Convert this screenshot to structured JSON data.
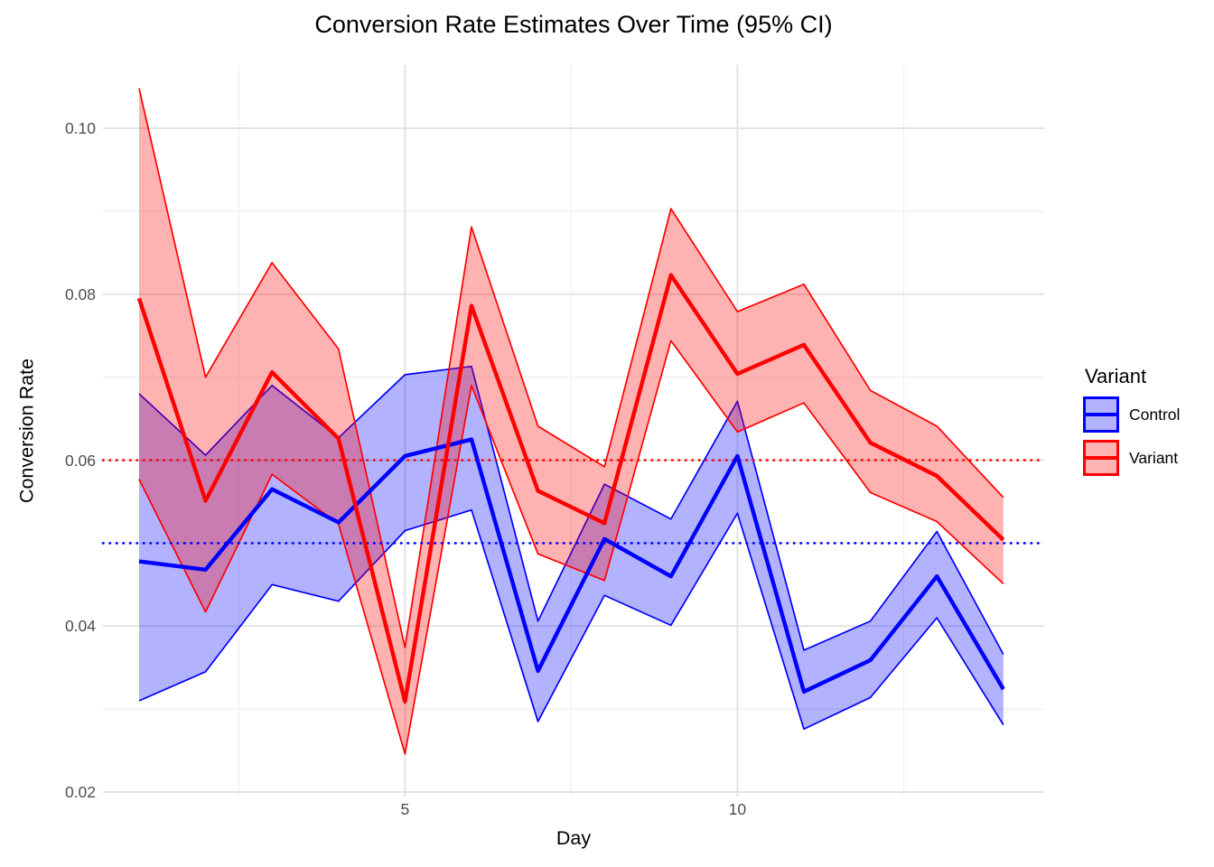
{
  "title": "Conversion Rate Estimates Over Time (95% CI)",
  "axes": {
    "x_label": "Day",
    "y_label": "Conversion Rate",
    "x_ticks": [
      {
        "value": 5,
        "label": "5"
      },
      {
        "value": 10,
        "label": "10"
      }
    ],
    "y_ticks": [
      {
        "value": 0.02,
        "label": "0.02"
      },
      {
        "value": 0.04,
        "label": "0.04"
      },
      {
        "value": 0.06,
        "label": "0.06"
      },
      {
        "value": 0.08,
        "label": "0.08"
      },
      {
        "value": 0.1,
        "label": "0.10"
      }
    ]
  },
  "legend": {
    "title": "Variant",
    "position": "right",
    "items": [
      {
        "label": "Control",
        "color": "#0000ff",
        "fill": "#b3b3ff"
      },
      {
        "label": "Variant",
        "color": "#ff0000",
        "fill": "#ffb3b3"
      }
    ]
  },
  "chart_data": {
    "type": "line",
    "title": "Conversion Rate Estimates Over Time (95% CI)",
    "xlabel": "Day",
    "ylabel": "Conversion Rate",
    "x": [
      1,
      2,
      3,
      4,
      5,
      6,
      7,
      8,
      9,
      10,
      11,
      12,
      13,
      14
    ],
    "series": [
      {
        "name": "Control",
        "color": "#0000ff",
        "values": [
          0.0478,
          0.0468,
          0.0565,
          0.0525,
          0.0605,
          0.0625,
          0.0346,
          0.0505,
          0.046,
          0.0605,
          0.0321,
          0.0359,
          0.046,
          0.0324
        ],
        "lower": [
          0.031,
          0.0345,
          0.045,
          0.043,
          0.0515,
          0.054,
          0.0285,
          0.0437,
          0.0401,
          0.0536,
          0.0276,
          0.0314,
          0.041,
          0.0281
        ],
        "upper": [
          0.068,
          0.0606,
          0.069,
          0.0627,
          0.0703,
          0.0713,
          0.0406,
          0.0571,
          0.0529,
          0.0671,
          0.0371,
          0.0406,
          0.0514,
          0.0366
        ]
      },
      {
        "name": "Variant",
        "color": "#ff0000",
        "values": [
          0.0795,
          0.0551,
          0.0706,
          0.0626,
          0.0309,
          0.0786,
          0.0563,
          0.0524,
          0.0823,
          0.0704,
          0.0739,
          0.0621,
          0.0581,
          0.0504
        ],
        "lower": [
          0.0577,
          0.0417,
          0.0583,
          0.0523,
          0.0246,
          0.069,
          0.0487,
          0.0455,
          0.0744,
          0.0634,
          0.0669,
          0.0561,
          0.0526,
          0.0451
        ],
        "upper": [
          0.1048,
          0.07,
          0.0838,
          0.0734,
          0.0374,
          0.0881,
          0.0641,
          0.0592,
          0.0903,
          0.0779,
          0.0812,
          0.0684,
          0.0641,
          0.0555
        ]
      }
    ],
    "reference_lines": [
      {
        "name": "control-baseline",
        "y": 0.05,
        "color": "#0000ff",
        "style": "dotted"
      },
      {
        "name": "variant-baseline",
        "y": 0.06,
        "color": "#ff0000",
        "style": "dotted"
      }
    ],
    "band_opacity": 0.3,
    "xlim": [
      0.457,
      14.614
    ],
    "ylim": [
      0.01946,
      0.10762
    ],
    "grid": {
      "x_major": [
        5,
        10
      ],
      "x_minor": [
        2.5,
        7.5,
        12.5
      ],
      "y_major": [
        0.02,
        0.04,
        0.06,
        0.08,
        0.1
      ],
      "y_minor": [
        0.03,
        0.05,
        0.07,
        0.09
      ],
      "major_color": "#e3e3e3",
      "minor_color": "#f2f2f2"
    },
    "legend_position": "right"
  }
}
